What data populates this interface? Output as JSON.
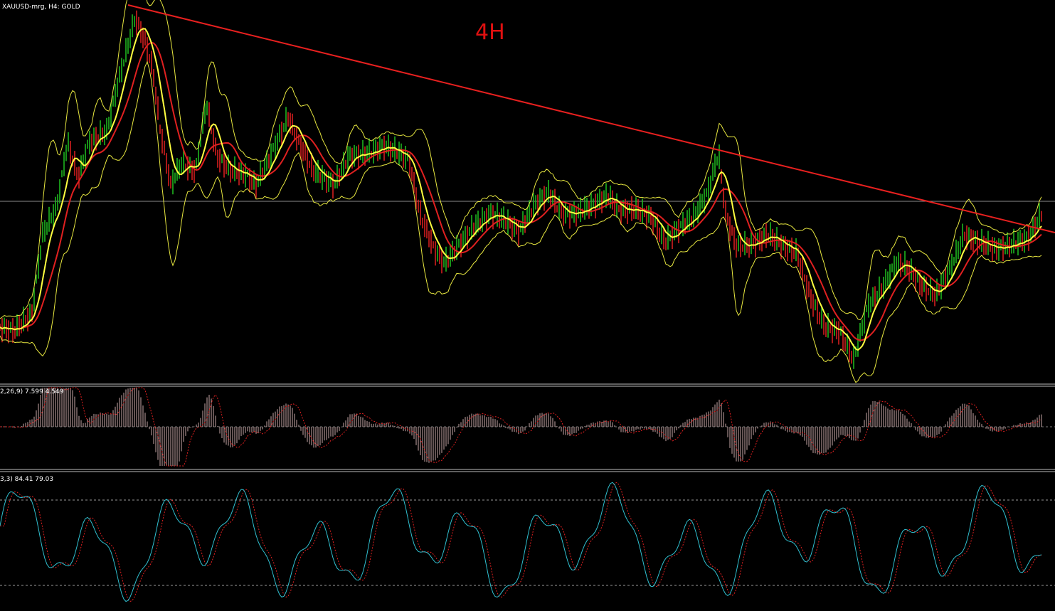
{
  "header": {
    "symbol": "XAUUSD-mrg, H4:  GOLD",
    "annotation": "4H"
  },
  "macd_panel": {
    "label": "2,26,9) 7.599 4.549"
  },
  "stochastic_panel": {
    "label": "3,3) 84.41 79.03"
  }
}
